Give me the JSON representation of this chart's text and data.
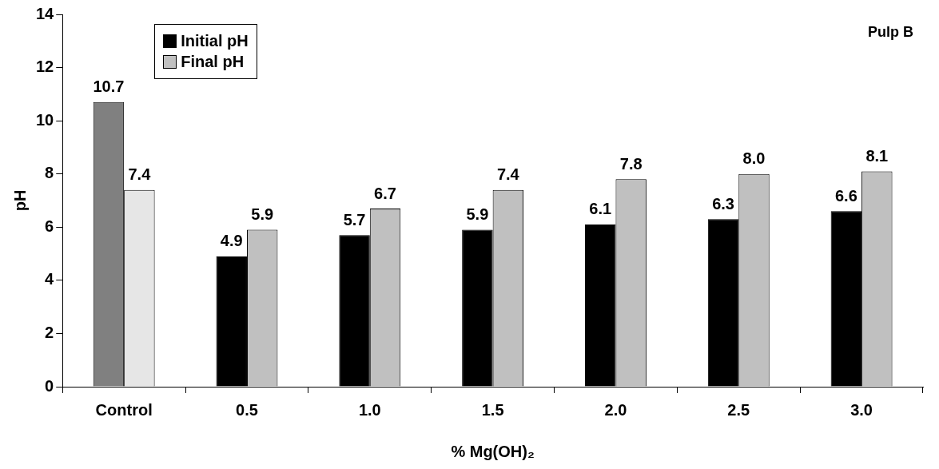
{
  "chart_data": {
    "type": "bar",
    "categories": [
      "Control",
      "0.5",
      "1.0",
      "1.5",
      "2.0",
      "2.5",
      "3.0"
    ],
    "xlabel": "% Mg(OH)₂",
    "ylabel": "pH",
    "series": [
      {
        "name": "Initial pH",
        "color": "#000000",
        "colors": [
          "#808080",
          "#000000",
          "#000000",
          "#000000",
          "#000000",
          "#000000",
          "#000000"
        ],
        "values": [
          10.7,
          4.9,
          5.7,
          5.9,
          6.1,
          6.3,
          6.6
        ],
        "value_labels": [
          "10.7",
          "4.9",
          "5.7",
          "5.9",
          "6.1",
          "6.3",
          "6.6"
        ]
      },
      {
        "name": "Final pH",
        "color": "#c0c0c0",
        "colors": [
          "#e6e6e6",
          "#c0c0c0",
          "#c0c0c0",
          "#c0c0c0",
          "#c0c0c0",
          "#c0c0c0",
          "#c0c0c0"
        ],
        "values": [
          7.4,
          5.9,
          6.7,
          7.4,
          7.8,
          8.0,
          8.1
        ],
        "value_labels": [
          "7.4",
          "5.9",
          "6.7",
          "7.4",
          "7.8",
          "8.0",
          "8.1"
        ]
      }
    ],
    "ylim": [
      0,
      14
    ],
    "yticks": [
      0,
      2,
      4,
      6,
      8,
      10,
      12,
      14
    ],
    "grid": false,
    "legend": "top left",
    "annotations": [
      "Pulp B"
    ]
  }
}
